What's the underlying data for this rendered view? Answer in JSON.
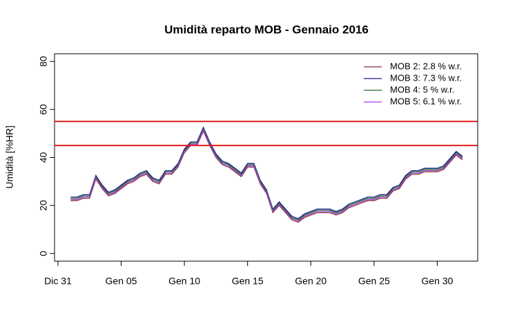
{
  "chart_data": {
    "type": "line",
    "title": "Umidità reparto MOB - Gennaio 2016",
    "ylabel": "Umidità [%HR]",
    "x": [
      1,
      1.5,
      2,
      2.5,
      3,
      3.5,
      4,
      4.5,
      5,
      5.5,
      6,
      6.5,
      7,
      7.5,
      8,
      8.5,
      9,
      9.5,
      10,
      10.5,
      11,
      11.5,
      12,
      12.5,
      13,
      13.5,
      14,
      14.5,
      15,
      15.5,
      16,
      16.5,
      17,
      17.5,
      18,
      18.5,
      19,
      19.5,
      20,
      20.5,
      21,
      21.5,
      22,
      22.5,
      23,
      23.5,
      24,
      24.5,
      25,
      25.5,
      26,
      26.5,
      27,
      27.5,
      28,
      28.5,
      29,
      29.5,
      30,
      30.5,
      31,
      31.5,
      32
    ],
    "series": [
      {
        "name": "MOB 2:  2.8 % w.r.",
        "color": "#8b2c3a",
        "values": [
          22,
          22,
          23,
          23,
          31,
          27,
          24,
          25,
          27,
          29,
          30,
          32,
          33,
          30,
          29,
          33,
          33,
          36,
          42,
          45,
          45,
          51,
          45,
          40,
          37,
          36,
          34,
          32,
          36,
          36,
          29,
          25,
          17,
          20,
          17,
          14,
          13,
          15,
          16,
          17,
          17,
          17,
          16,
          17,
          19,
          20,
          21,
          22,
          22,
          23,
          23,
          26,
          27,
          31,
          33,
          33,
          34,
          34,
          34,
          35,
          38,
          41,
          39
        ]
      },
      {
        "name": "MOB 3:  7.3 % w.r.",
        "color": "#1a1a8c",
        "values": [
          23.5,
          23.5,
          24.5,
          24.5,
          32.5,
          28.5,
          25.5,
          26.5,
          28.5,
          30.5,
          31.5,
          33.5,
          34.5,
          31.5,
          30.5,
          34.5,
          34.5,
          37.5,
          43.5,
          46.5,
          46.5,
          52.5,
          46.5,
          41.5,
          38.5,
          37.5,
          35.5,
          33.5,
          37.5,
          37.5,
          30.5,
          26.5,
          18.5,
          21.5,
          18.5,
          15.5,
          14.5,
          16.5,
          17.5,
          18.5,
          18.5,
          18.5,
          17.5,
          18.5,
          20.5,
          21.5,
          22.5,
          23.5,
          23.5,
          24.5,
          24.5,
          27.5,
          28.5,
          32.5,
          34.5,
          34.5,
          35.5,
          35.5,
          35.5,
          36.5,
          39.5,
          42.5,
          40.5
        ]
      },
      {
        "name": "MOB 4:  5 % w.r.",
        "color": "#1e6b1e",
        "values": [
          23,
          23,
          24,
          24,
          32,
          28,
          25,
          26,
          28,
          30,
          31,
          33,
          34,
          31,
          30,
          34,
          34,
          37,
          43,
          46,
          46,
          52,
          46,
          41,
          38,
          37,
          35,
          33,
          37,
          37,
          30,
          26,
          18,
          21,
          18,
          15,
          14,
          16,
          17,
          18,
          18,
          18,
          17,
          18,
          20,
          21,
          22,
          23,
          23,
          24,
          24,
          27,
          28,
          32,
          34,
          34,
          35,
          35,
          35,
          36,
          39,
          42,
          40
        ]
      },
      {
        "name": "MOB 5:  6.1 % w.r.",
        "color": "#a23ee0",
        "values": [
          22.5,
          22.5,
          23.5,
          23.5,
          31.5,
          27.5,
          24.5,
          25.5,
          27.5,
          29.5,
          30.5,
          32.5,
          33.5,
          30.5,
          29.5,
          33.5,
          33.5,
          36.5,
          42.5,
          45.5,
          45.5,
          51.5,
          45.5,
          40.5,
          37.5,
          36.5,
          34.5,
          32.5,
          36.5,
          36.5,
          29.5,
          25.5,
          17.5,
          20.5,
          17.5,
          14.5,
          13.5,
          15.5,
          16.5,
          17.5,
          17.5,
          17.5,
          16.5,
          17.5,
          19.5,
          20.5,
          21.5,
          22.5,
          22.5,
          23.5,
          23.5,
          26.5,
          27.5,
          31.5,
          33.5,
          33.5,
          34.5,
          34.5,
          34.5,
          35.5,
          38.5,
          41.5,
          39.5
        ]
      }
    ],
    "hlines": [
      {
        "value": 55,
        "color": "#e31a1c"
      },
      {
        "value": 45,
        "color": "#e31a1c"
      }
    ],
    "xlim": [
      -0.27,
      33.2
    ],
    "xticks": [
      {
        "value": 0,
        "label": "Dic 31"
      },
      {
        "value": 5,
        "label": "Gen 05"
      },
      {
        "value": 10,
        "label": "Gen 10"
      },
      {
        "value": 15,
        "label": "Gen 15"
      },
      {
        "value": 20,
        "label": "Gen 20"
      },
      {
        "value": 25,
        "label": "Gen 25"
      },
      {
        "value": 30,
        "label": "Gen 30"
      }
    ],
    "ylim": [
      -3.2,
      83.2
    ],
    "yticks": [
      0,
      20,
      40,
      60,
      80
    ],
    "legend": "top-right"
  }
}
